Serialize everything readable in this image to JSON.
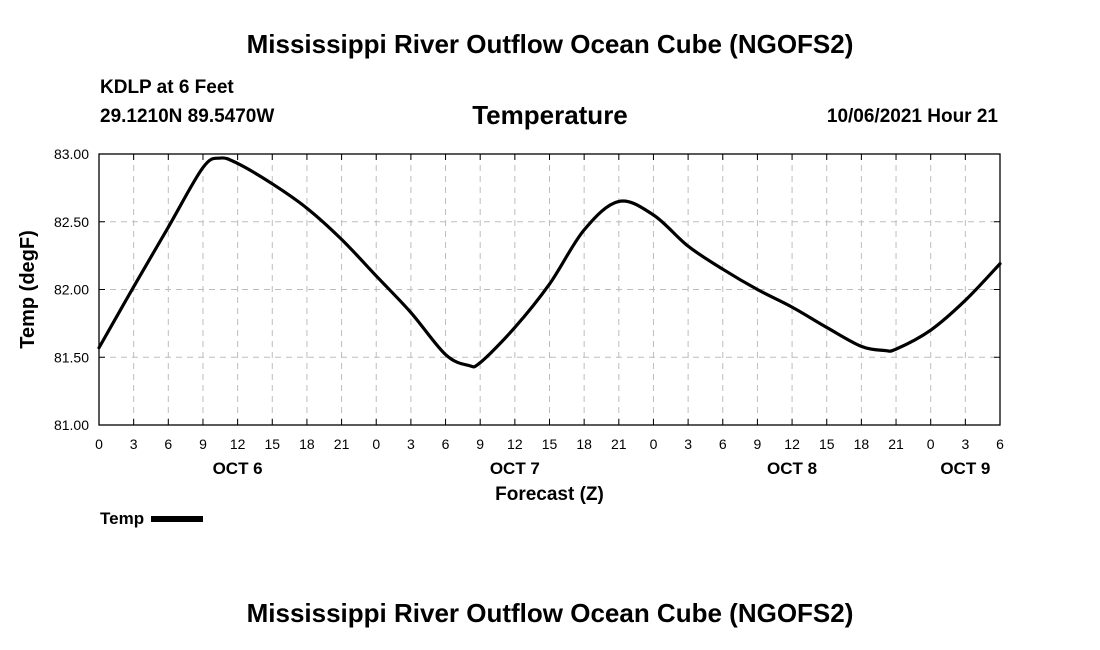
{
  "header": {
    "title": "Mississippi River Outflow Ocean Cube (NGOFS2)",
    "station": "KDLP at 6 Feet",
    "coords": "29.1210N  89.5470W",
    "datetime": "10/06/2021 Hour 21"
  },
  "footer": {
    "title": "Mississippi River Outflow Ocean Cube (NGOFS2)"
  },
  "chart_data": {
    "type": "line",
    "title": "Temperature",
    "xlabel": "Forecast (Z)",
    "ylabel": "Temp (degF)",
    "x_unit": "hours since 10/06/2021 00Z",
    "xlim": [
      0,
      78
    ],
    "ylim": [
      81.0,
      83.0
    ],
    "grid": true,
    "legend_position": "bottom-left",
    "yticks": [
      81.0,
      81.5,
      82.0,
      82.5,
      83.0
    ],
    "ytick_labels": [
      "81.00",
      "81.50",
      "82.00",
      "82.50",
      "83.00"
    ],
    "xticks": [
      0,
      3,
      6,
      9,
      12,
      15,
      18,
      21,
      24,
      27,
      30,
      33,
      36,
      39,
      42,
      45,
      48,
      51,
      54,
      57,
      60,
      63,
      66,
      69,
      72,
      75,
      78
    ],
    "xtick_labels": [
      "0",
      "3",
      "6",
      "9",
      "12",
      "15",
      "18",
      "21",
      "0",
      "3",
      "6",
      "9",
      "12",
      "15",
      "18",
      "21",
      "0",
      "3",
      "6",
      "9",
      "12",
      "15",
      "18",
      "21",
      "0",
      "3",
      "6"
    ],
    "day_labels": [
      {
        "hour": 12,
        "label": "OCT 6"
      },
      {
        "hour": 36,
        "label": "OCT 7"
      },
      {
        "hour": 60,
        "label": "OCT 8"
      },
      {
        "hour": 75,
        "label": "OCT 9"
      }
    ],
    "series": [
      {
        "name": "Temp",
        "x": [
          0,
          3,
          6,
          9,
          10.5,
          12,
          15,
          18,
          21,
          24,
          27,
          30,
          32,
          33,
          36,
          39,
          42,
          45,
          48,
          51,
          54,
          57,
          60,
          63,
          66,
          68,
          69,
          72,
          75,
          78
        ],
        "y": [
          81.57,
          82.02,
          82.46,
          82.9,
          82.97,
          82.93,
          82.78,
          82.6,
          82.37,
          82.1,
          81.83,
          81.52,
          81.44,
          81.46,
          81.72,
          82.04,
          82.44,
          82.65,
          82.55,
          82.32,
          82.15,
          82.0,
          81.87,
          81.72,
          81.58,
          81.55,
          81.56,
          81.7,
          81.92,
          82.19
        ]
      }
    ]
  }
}
